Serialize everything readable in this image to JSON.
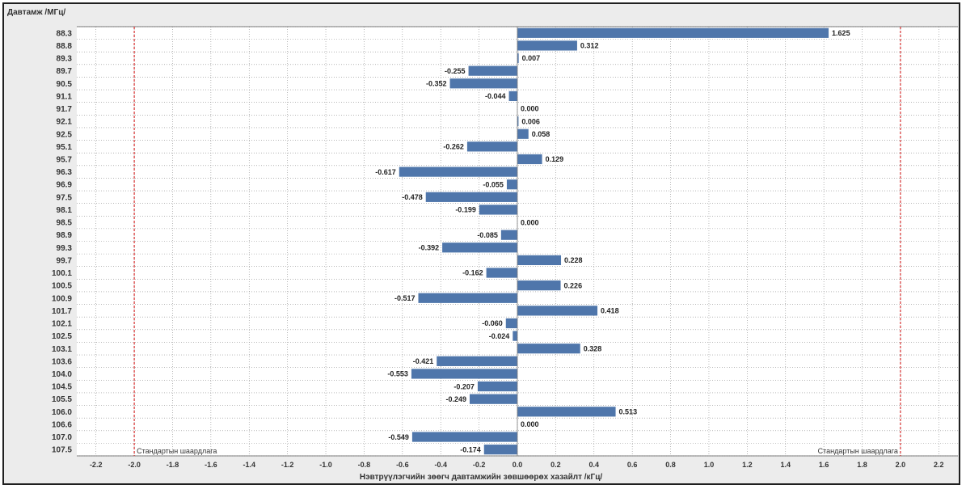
{
  "chart_data": {
    "type": "bar",
    "orientation": "horizontal",
    "ylabel": "Давтамж /МГц/",
    "xlabel": "Нэвтрүүлэгчийн зөөгч давтамжийн зөвшөөрөх хазайлт /кГц/",
    "xlim": [
      -2.3,
      2.3
    ],
    "xticks": [
      "-2.2",
      "-2.0",
      "-1.8",
      "-1.6",
      "-1.4",
      "-1.2",
      "-1.0",
      "-0.8",
      "-0.6",
      "-0.4",
      "-0.2",
      "0.0",
      "0.2",
      "0.4",
      "0.6",
      "0.8",
      "1.0",
      "1.2",
      "1.4",
      "1.6",
      "1.8",
      "2.0",
      "2.2"
    ],
    "grid": true,
    "bar_color": "#4f76ab",
    "reference_color": "#d42020",
    "reference_lines": [
      {
        "value": -2.0,
        "label": "Стандартын шаардлага"
      },
      {
        "value": 2.0,
        "label": "Стандартын шаардлага"
      }
    ],
    "categories": [
      "88.3",
      "88.8",
      "89.3",
      "89.7",
      "90.5",
      "91.1",
      "91.7",
      "92.1",
      "92.5",
      "95.1",
      "95.7",
      "96.3",
      "96.9",
      "97.5",
      "98.1",
      "98.5",
      "98.9",
      "99.3",
      "99.7",
      "100.1",
      "100.5",
      "100.9",
      "101.7",
      "102.1",
      "102.5",
      "103.1",
      "103.6",
      "104.0",
      "104.5",
      "105.5",
      "106.0",
      "106.6",
      "107.0",
      "107.5"
    ],
    "values": [
      1.625,
      0.312,
      0.007,
      -0.255,
      -0.352,
      -0.044,
      0.0,
      0.006,
      0.058,
      -0.262,
      0.129,
      -0.617,
      -0.055,
      -0.478,
      -0.199,
      0.0,
      -0.085,
      -0.392,
      0.228,
      -0.162,
      0.226,
      -0.517,
      0.418,
      -0.06,
      -0.024,
      0.328,
      -0.421,
      -0.553,
      -0.207,
      -0.249,
      0.513,
      0.0,
      -0.549,
      -0.174
    ],
    "value_labels": [
      "1.625",
      "0.312",
      "0.007",
      "-0.255",
      "-0.352",
      "-0.044",
      "0.000",
      "0.006",
      "0.058",
      "-0.262",
      "0.129",
      "-0.617",
      "-0.055",
      "-0.478",
      "-0.199",
      "0.000",
      "-0.085",
      "-0.392",
      "0.228",
      "-0.162",
      "0.226",
      "-0.517",
      "0.418",
      "-0.060",
      "-0.024",
      "0.328",
      "-0.421",
      "-0.553",
      "-0.207",
      "-0.249",
      "0.513",
      "0.000",
      "-0.549",
      "-0.174"
    ]
  }
}
